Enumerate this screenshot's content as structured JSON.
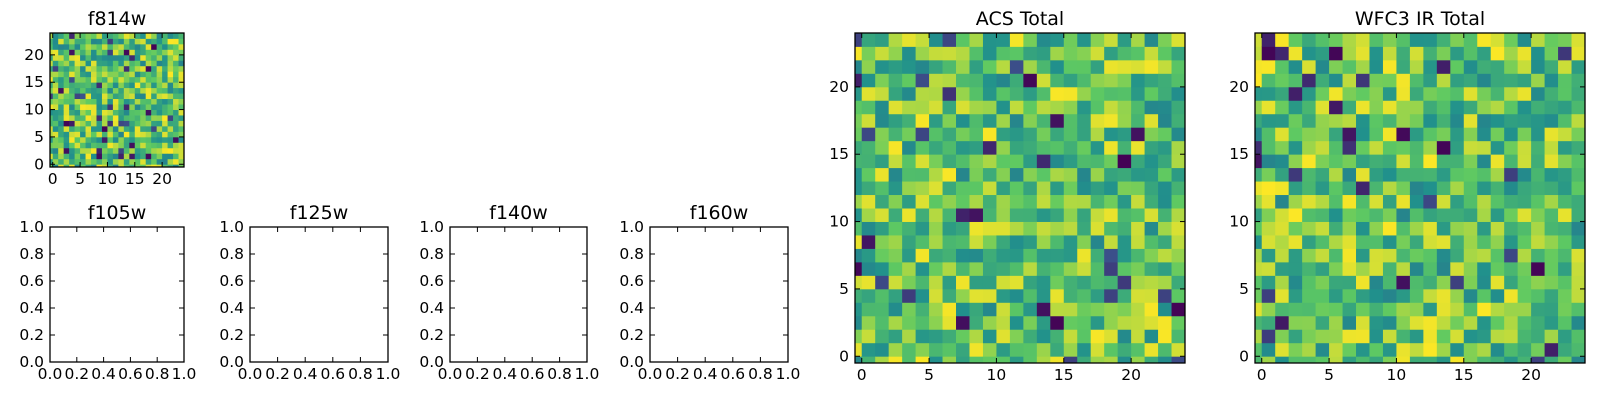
{
  "chart_data": [
    {
      "type": "heatmap",
      "title": "f814w",
      "grid_size": 25,
      "xticks": [
        "0",
        "5",
        "10",
        "15",
        "20"
      ],
      "yticks": [
        "0",
        "5",
        "10",
        "15",
        "20"
      ],
      "colormap": "viridis",
      "seed": 814
    },
    {
      "type": "empty",
      "title": "f105w",
      "xticks": [
        "0.0",
        "0.2",
        "0.4",
        "0.6",
        "0.8",
        "1.0"
      ],
      "yticks": [
        "0.0",
        "0.2",
        "0.4",
        "0.6",
        "0.8",
        "1.0"
      ],
      "xlim": [
        0,
        1
      ],
      "ylim": [
        0,
        1
      ]
    },
    {
      "type": "empty",
      "title": "f125w",
      "xticks": [
        "0.0",
        "0.2",
        "0.4",
        "0.6",
        "0.8",
        "1.0"
      ],
      "yticks": [
        "0.0",
        "0.2",
        "0.4",
        "0.6",
        "0.8",
        "1.0"
      ],
      "xlim": [
        0,
        1
      ],
      "ylim": [
        0,
        1
      ]
    },
    {
      "type": "empty",
      "title": "f140w",
      "xticks": [
        "0.0",
        "0.2",
        "0.4",
        "0.6",
        "0.8",
        "1.0"
      ],
      "yticks": [
        "0.0",
        "0.2",
        "0.4",
        "0.6",
        "0.8",
        "1.0"
      ],
      "xlim": [
        0,
        1
      ],
      "ylim": [
        0,
        1
      ]
    },
    {
      "type": "empty",
      "title": "f160w",
      "xticks": [
        "0.0",
        "0.2",
        "0.4",
        "0.6",
        "0.8",
        "1.0"
      ],
      "yticks": [
        "0.0",
        "0.2",
        "0.4",
        "0.6",
        "0.8",
        "1.0"
      ],
      "xlim": [
        0,
        1
      ],
      "ylim": [
        0,
        1
      ]
    },
    {
      "type": "heatmap",
      "title": "ACS Total",
      "grid_size": 25,
      "xticks": [
        "0",
        "5",
        "10",
        "15",
        "20"
      ],
      "yticks": [
        "0",
        "5",
        "10",
        "15",
        "20"
      ],
      "colormap": "viridis",
      "seed": 2020
    },
    {
      "type": "heatmap",
      "title": "WFC3 IR Total",
      "grid_size": 25,
      "xticks": [
        "0",
        "5",
        "10",
        "15",
        "20"
      ],
      "yticks": [
        "0",
        "5",
        "10",
        "15",
        "20"
      ],
      "colormap": "viridis",
      "seed": 3030
    }
  ]
}
